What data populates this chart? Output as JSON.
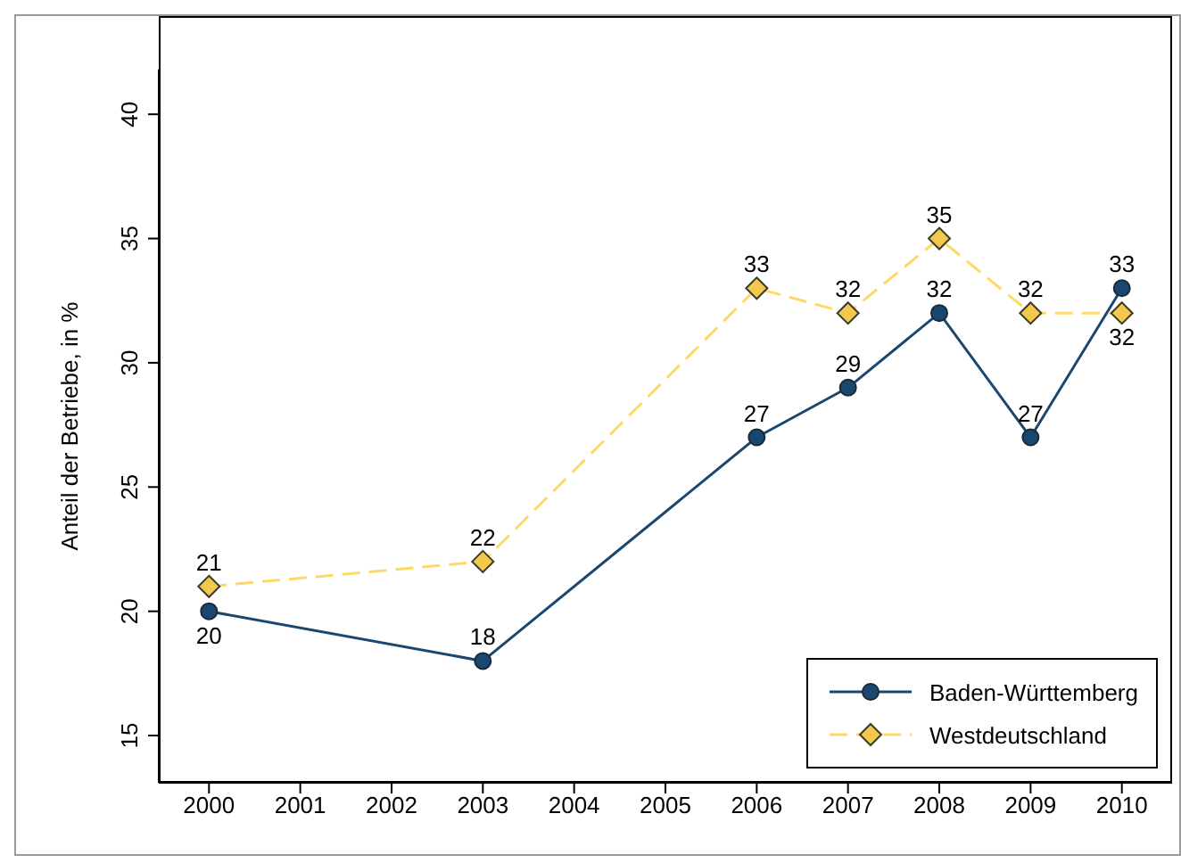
{
  "chart_data": {
    "type": "line",
    "ylabel": "Anteil der Betriebe, in %",
    "x": [
      2000,
      2003,
      2006,
      2007,
      2008,
      2009,
      2010
    ],
    "xlim": [
      1999.45,
      2010.55
    ],
    "xticks": [
      2000,
      2001,
      2002,
      2003,
      2004,
      2005,
      2006,
      2007,
      2008,
      2009,
      2010
    ],
    "ylim": [
      13.1,
      41.8
    ],
    "yticks": [
      15,
      20,
      25,
      30,
      35,
      40
    ],
    "series": [
      {
        "name": "Baden-Württemberg",
        "color": "#1a476f",
        "values": [
          20,
          18,
          27,
          29,
          32,
          27,
          33
        ],
        "marker": "circle",
        "line_style": "solid"
      },
      {
        "name": "Westdeutschland",
        "color": "#ffd966",
        "values": [
          21,
          22,
          33,
          32,
          35,
          32,
          32
        ],
        "marker": "diamond",
        "line_style": "dashed"
      }
    ],
    "data_labels": true,
    "legend": "bottom right"
  }
}
